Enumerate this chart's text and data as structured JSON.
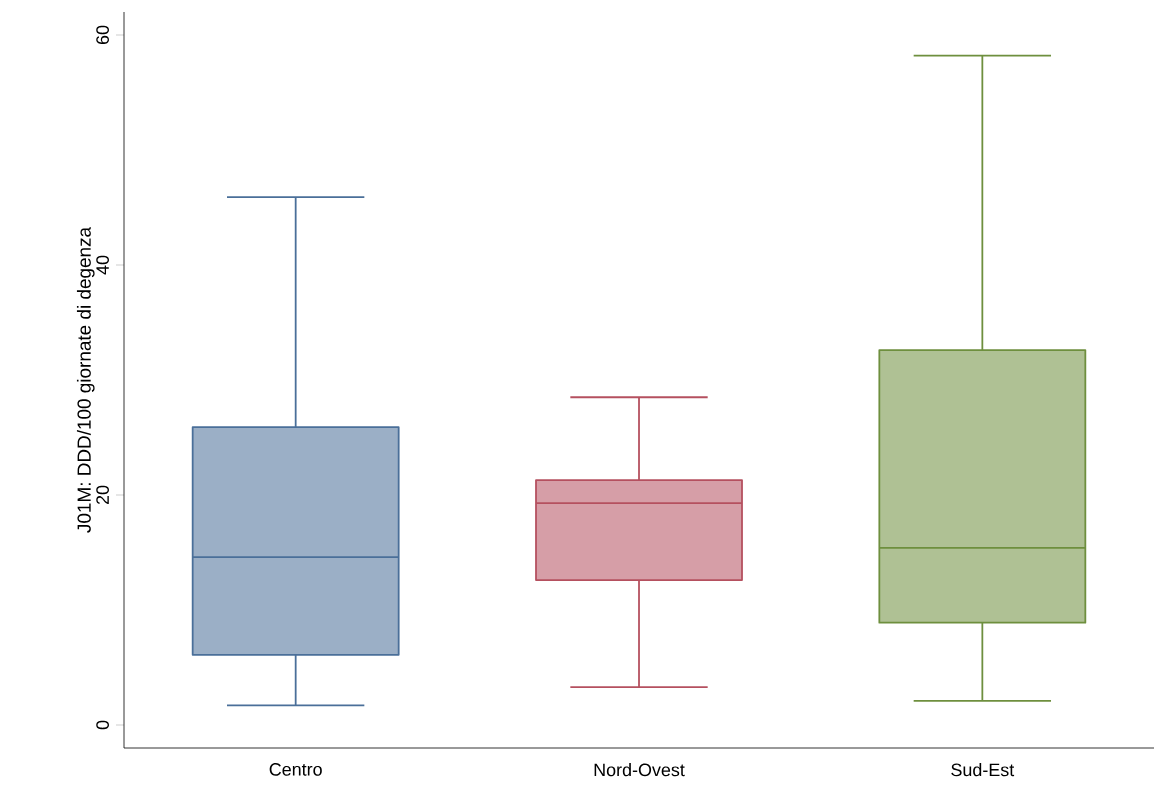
{
  "chart_data": {
    "type": "box",
    "ylabel": "J01M: DDD/100 giornate di degenza",
    "categories": [
      "Centro",
      "Nord-Ovest",
      "Sud-Est"
    ],
    "boxes": [
      {
        "low": 1.7,
        "q1": 6.1,
        "median": 14.6,
        "q3": 25.9,
        "high": 45.9
      },
      {
        "low": 3.3,
        "q1": 12.6,
        "median": 19.3,
        "q3": 21.3,
        "high": 28.5
      },
      {
        "low": 2.1,
        "q1": 8.9,
        "median": 15.4,
        "q3": 32.6,
        "high": 58.2
      }
    ],
    "colors": [
      "#4a6f99",
      "#b5505f",
      "#6e8f3e"
    ],
    "ylim": [
      -2,
      62
    ],
    "yticks": [
      0,
      20,
      40,
      60
    ],
    "grid": false
  }
}
